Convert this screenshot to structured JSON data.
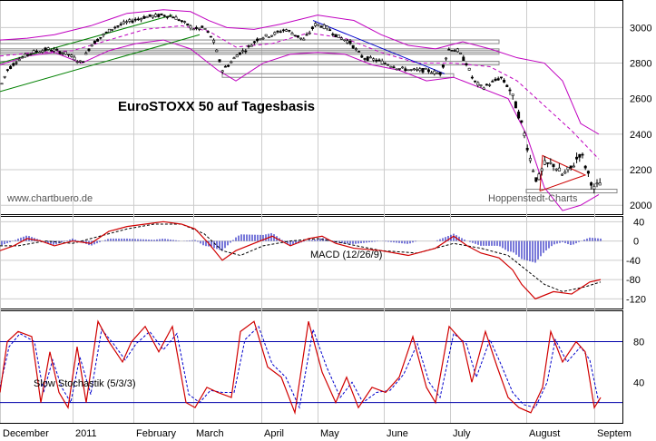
{
  "chart_data": [
    {
      "type": "candlestick",
      "title": "EuroSTOXX 50 auf Tagesbasis",
      "watermark_left": "www.chartbuero.de",
      "watermark_right": "Hoppenstedt-Charts",
      "ylim": [
        1950,
        3150
      ],
      "yticks": [
        2000,
        2200,
        2400,
        2600,
        2800,
        3000
      ],
      "x_labels": [
        "December",
        "2011",
        "February",
        "March",
        "April",
        "May",
        "June",
        "July",
        "August",
        "Septem"
      ],
      "price_path": [
        [
          0,
          2660
        ],
        [
          8,
          2760
        ],
        [
          20,
          2820
        ],
        [
          35,
          2860
        ],
        [
          55,
          2880
        ],
        [
          75,
          2850
        ],
        [
          90,
          2800
        ],
        [
          100,
          2900
        ],
        [
          112,
          2950
        ],
        [
          125,
          3000
        ],
        [
          140,
          3030
        ],
        [
          160,
          3060
        ],
        [
          180,
          3070
        ],
        [
          192,
          3060
        ],
        [
          205,
          3020
        ],
        [
          215,
          2990
        ],
        [
          225,
          3000
        ],
        [
          235,
          2930
        ],
        [
          245,
          2760
        ],
        [
          252,
          2790
        ],
        [
          262,
          2850
        ],
        [
          272,
          2880
        ],
        [
          285,
          2940
        ],
        [
          300,
          2960
        ],
        [
          315,
          2990
        ],
        [
          325,
          2960
        ],
        [
          335,
          2930
        ],
        [
          348,
          3020
        ],
        [
          360,
          3000
        ],
        [
          372,
          2950
        ],
        [
          385,
          2920
        ],
        [
          400,
          2830
        ],
        [
          412,
          2820
        ],
        [
          425,
          2800
        ],
        [
          440,
          2770
        ],
        [
          455,
          2760
        ],
        [
          470,
          2760
        ],
        [
          485,
          2740
        ],
        [
          495,
          2880
        ],
        [
          505,
          2870
        ],
        [
          515,
          2790
        ],
        [
          522,
          2700
        ],
        [
          532,
          2660
        ],
        [
          542,
          2690
        ],
        [
          552,
          2720
        ],
        [
          562,
          2650
        ],
        [
          570,
          2540
        ],
        [
          578,
          2400
        ],
        [
          585,
          2250
        ],
        [
          592,
          2130
        ],
        [
          600,
          2230
        ],
        [
          610,
          2230
        ],
        [
          620,
          2170
        ],
        [
          630,
          2210
        ],
        [
          640,
          2300
        ],
        [
          648,
          2180
        ],
        [
          655,
          2090
        ],
        [
          662,
          2130
        ]
      ],
      "bollinger_upper": [
        [
          0,
          2930
        ],
        [
          30,
          2940
        ],
        [
          60,
          2960
        ],
        [
          100,
          3010
        ],
        [
          140,
          3080
        ],
        [
          180,
          3100
        ],
        [
          210,
          3090
        ],
        [
          230,
          3040
        ],
        [
          250,
          3000
        ],
        [
          280,
          2990
        ],
        [
          310,
          3020
        ],
        [
          350,
          3070
        ],
        [
          390,
          3040
        ],
        [
          420,
          2960
        ],
        [
          450,
          2900
        ],
        [
          480,
          2880
        ],
        [
          510,
          2920
        ],
        [
          540,
          2880
        ],
        [
          570,
          2830
        ],
        [
          600,
          2800
        ],
        [
          620,
          2700
        ],
        [
          640,
          2460
        ],
        [
          660,
          2400
        ]
      ],
      "bollinger_lower": [
        [
          0,
          2790
        ],
        [
          30,
          2840
        ],
        [
          60,
          2860
        ],
        [
          90,
          2800
        ],
        [
          120,
          2870
        ],
        [
          150,
          2910
        ],
        [
          180,
          2930
        ],
        [
          210,
          2880
        ],
        [
          240,
          2760
        ],
        [
          260,
          2700
        ],
        [
          290,
          2800
        ],
        [
          320,
          2850
        ],
        [
          350,
          2860
        ],
        [
          380,
          2850
        ],
        [
          410,
          2790
        ],
        [
          440,
          2760
        ],
        [
          470,
          2700
        ],
        [
          500,
          2720
        ],
        [
          530,
          2660
        ],
        [
          560,
          2600
        ],
        [
          580,
          2400
        ],
        [
          600,
          2100
        ],
        [
          620,
          1970
        ],
        [
          640,
          2000
        ],
        [
          660,
          2060
        ]
      ],
      "moving_avg": [
        [
          0,
          2840
        ],
        [
          40,
          2860
        ],
        [
          80,
          2870
        ],
        [
          120,
          2930
        ],
        [
          160,
          2990
        ],
        [
          200,
          3010
        ],
        [
          230,
          2980
        ],
        [
          260,
          2890
        ],
        [
          300,
          2910
        ],
        [
          340,
          2970
        ],
        [
          380,
          2940
        ],
        [
          420,
          2860
        ],
        [
          460,
          2800
        ],
        [
          500,
          2800
        ],
        [
          540,
          2780
        ],
        [
          570,
          2700
        ],
        [
          600,
          2560
        ],
        [
          630,
          2420
        ],
        [
          660,
          2260
        ]
      ],
      "support_lines": [
        2920,
        2870,
        2860,
        2800,
        2730,
        2080
      ]
    },
    {
      "type": "line",
      "title": "MACD (12/26/9)",
      "ylim": [
        -140,
        50
      ],
      "yticks": [
        40,
        0,
        -40,
        -80,
        -120
      ],
      "macd": [
        [
          0,
          -20
        ],
        [
          15,
          -10
        ],
        [
          30,
          5
        ],
        [
          45,
          0
        ],
        [
          60,
          -10
        ],
        [
          80,
          0
        ],
        [
          100,
          -5
        ],
        [
          120,
          20
        ],
        [
          140,
          30
        ],
        [
          160,
          35
        ],
        [
          180,
          40
        ],
        [
          200,
          35
        ],
        [
          215,
          25
        ],
        [
          230,
          -5
        ],
        [
          245,
          -40
        ],
        [
          260,
          -20
        ],
        [
          280,
          -5
        ],
        [
          300,
          10
        ],
        [
          320,
          -10
        ],
        [
          340,
          5
        ],
        [
          355,
          10
        ],
        [
          370,
          -5
        ],
        [
          390,
          -15
        ],
        [
          420,
          -20
        ],
        [
          450,
          -30
        ],
        [
          480,
          -15
        ],
        [
          500,
          10
        ],
        [
          515,
          -10
        ],
        [
          530,
          -25
        ],
        [
          550,
          -35
        ],
        [
          565,
          -60
        ],
        [
          575,
          -90
        ],
        [
          590,
          -120
        ],
        [
          610,
          -105
        ],
        [
          630,
          -110
        ],
        [
          650,
          -85
        ],
        [
          662,
          -80
        ]
      ],
      "signal": [
        [
          0,
          -10
        ],
        [
          20,
          -10
        ],
        [
          50,
          0
        ],
        [
          80,
          -5
        ],
        [
          110,
          10
        ],
        [
          140,
          25
        ],
        [
          170,
          35
        ],
        [
          200,
          35
        ],
        [
          225,
          15
        ],
        [
          245,
          -20
        ],
        [
          265,
          -30
        ],
        [
          290,
          -10
        ],
        [
          320,
          0
        ],
        [
          350,
          5
        ],
        [
          380,
          -5
        ],
        [
          420,
          -20
        ],
        [
          460,
          -25
        ],
        [
          500,
          -5
        ],
        [
          530,
          -15
        ],
        [
          560,
          -30
        ],
        [
          580,
          -60
        ],
        [
          600,
          -90
        ],
        [
          620,
          -105
        ],
        [
          645,
          -95
        ],
        [
          662,
          -85
        ]
      ]
    },
    {
      "type": "line",
      "title": "Slow Stochastik (5/3/3)",
      "ylim": [
        0,
        110
      ],
      "yticks": [
        80,
        40
      ],
      "lines": [
        80,
        20
      ],
      "k_line": [
        [
          0,
          30
        ],
        [
          8,
          80
        ],
        [
          20,
          90
        ],
        [
          35,
          85
        ],
        [
          45,
          20
        ],
        [
          55,
          70
        ],
        [
          65,
          30
        ],
        [
          75,
          15
        ],
        [
          85,
          75
        ],
        [
          95,
          20
        ],
        [
          108,
          100
        ],
        [
          120,
          80
        ],
        [
          135,
          60
        ],
        [
          145,
          80
        ],
        [
          160,
          95
        ],
        [
          175,
          70
        ],
        [
          190,
          95
        ],
        [
          205,
          20
        ],
        [
          215,
          15
        ],
        [
          228,
          35
        ],
        [
          240,
          30
        ],
        [
          255,
          25
        ],
        [
          265,
          90
        ],
        [
          280,
          100
        ],
        [
          295,
          55
        ],
        [
          310,
          45
        ],
        [
          325,
          10
        ],
        [
          340,
          100
        ],
        [
          355,
          50
        ],
        [
          370,
          20
        ],
        [
          382,
          45
        ],
        [
          395,
          15
        ],
        [
          410,
          35
        ],
        [
          425,
          30
        ],
        [
          440,
          45
        ],
        [
          455,
          85
        ],
        [
          470,
          35
        ],
        [
          480,
          20
        ],
        [
          495,
          95
        ],
        [
          510,
          80
        ],
        [
          520,
          40
        ],
        [
          535,
          90
        ],
        [
          548,
          55
        ],
        [
          560,
          25
        ],
        [
          572,
          15
        ],
        [
          585,
          10
        ],
        [
          598,
          35
        ],
        [
          607,
          90
        ],
        [
          620,
          60
        ],
        [
          635,
          80
        ],
        [
          645,
          70
        ],
        [
          655,
          15
        ],
        [
          662,
          25
        ]
      ],
      "d_line": [
        [
          0,
          35
        ],
        [
          10,
          75
        ],
        [
          22,
          88
        ],
        [
          38,
          80
        ],
        [
          48,
          30
        ],
        [
          58,
          62
        ],
        [
          68,
          35
        ],
        [
          78,
          20
        ],
        [
          88,
          65
        ],
        [
          100,
          28
        ],
        [
          112,
          92
        ],
        [
          125,
          78
        ],
        [
          138,
          62
        ],
        [
          150,
          78
        ],
        [
          165,
          90
        ],
        [
          180,
          72
        ],
        [
          195,
          88
        ],
        [
          208,
          28
        ],
        [
          220,
          20
        ],
        [
          232,
          32
        ],
        [
          245,
          30
        ],
        [
          258,
          30
        ],
        [
          270,
          82
        ],
        [
          285,
          95
        ],
        [
          300,
          58
        ],
        [
          315,
          45
        ],
        [
          330,
          15
        ],
        [
          345,
          92
        ],
        [
          360,
          55
        ],
        [
          375,
          25
        ],
        [
          388,
          40
        ],
        [
          400,
          20
        ],
        [
          415,
          30
        ],
        [
          430,
          32
        ],
        [
          445,
          48
        ],
        [
          460,
          78
        ],
        [
          473,
          40
        ],
        [
          485,
          25
        ],
        [
          500,
          88
        ],
        [
          514,
          78
        ],
        [
          525,
          45
        ],
        [
          540,
          82
        ],
        [
          552,
          58
        ],
        [
          565,
          30
        ],
        [
          577,
          18
        ],
        [
          590,
          15
        ],
        [
          603,
          40
        ],
        [
          612,
          82
        ],
        [
          625,
          60
        ],
        [
          640,
          75
        ],
        [
          650,
          62
        ],
        [
          660,
          20
        ]
      ]
    }
  ]
}
